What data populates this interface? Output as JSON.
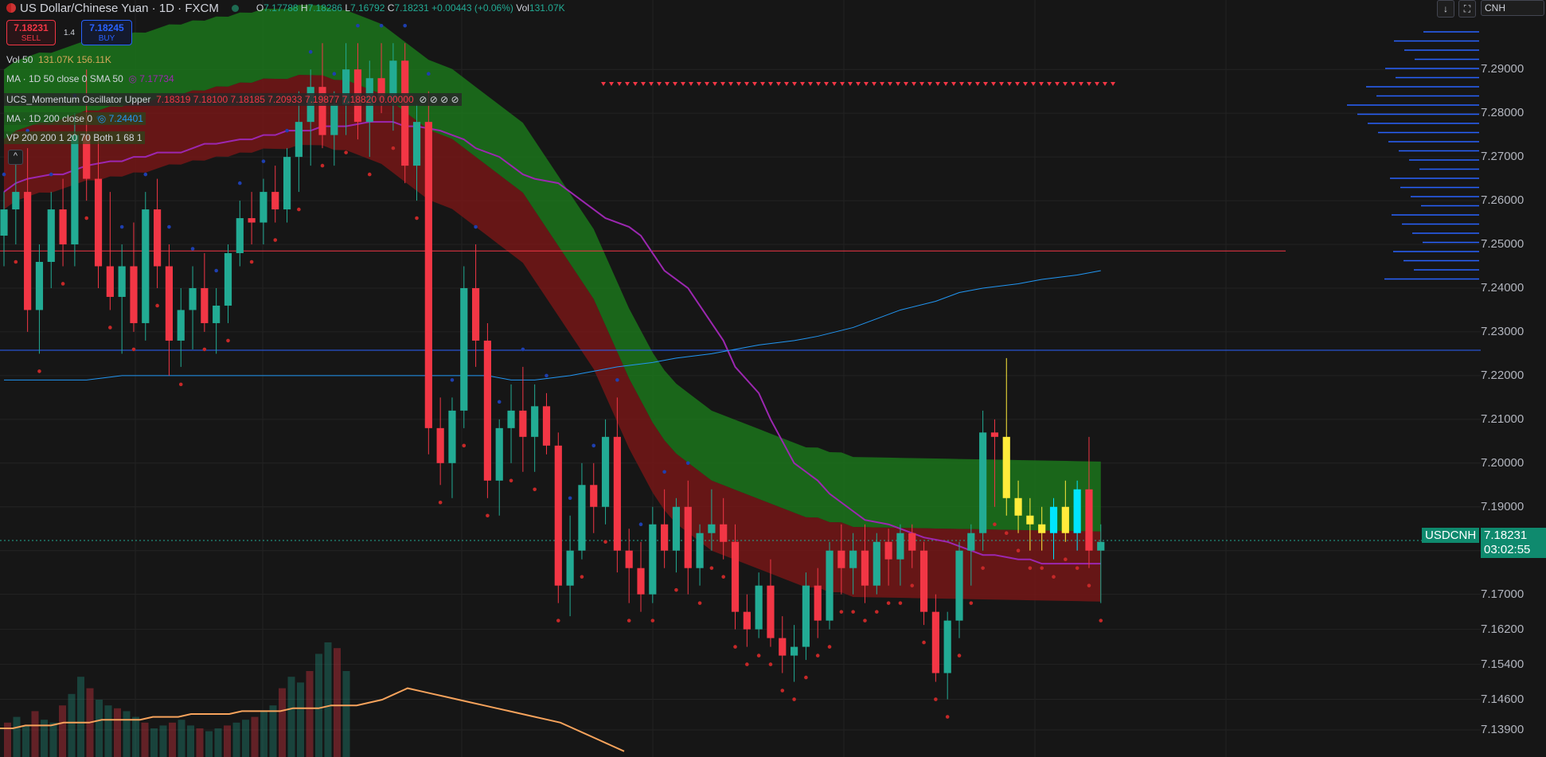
{
  "header": {
    "title": "US Dollar/Chinese Yuan · 1D · FXCM",
    "o_label": "O",
    "o_value": "7.17788",
    "h_label": "H",
    "h_value": "7.18286",
    "l_label": "L",
    "l_value": "7.16792",
    "c_label": "C",
    "c_value": "7.18231",
    "change": "+0.00443 (+0.06%)",
    "vol_label": "Vol",
    "vol_value": "131.07K"
  },
  "trade": {
    "sell_price": "7.18231",
    "sell_label": "SELL",
    "spread": "1.4",
    "buy_price": "7.18245",
    "buy_label": "BUY"
  },
  "legends": [
    {
      "name": "Vol 50",
      "values": "131.07K  156.11K"
    },
    {
      "name": "MA · 1D 50 close 0 SMA 50",
      "values": "7.17734"
    },
    {
      "name": "UCS_Momentum Oscillator Upper",
      "values": "7.18319  7.18100  7.18185  7.20933  7.19877  7.18820  0.00000"
    },
    {
      "name": "MA · 1D 200 close 0",
      "values": "7.24401"
    },
    {
      "name": "VP 200 200 1 20 70 Both 1 68 1",
      "values": ""
    }
  ],
  "toolbar": {
    "currency": "CNH",
    "collapse": "^"
  },
  "price_axis": [
    "7.29000",
    "7.28000",
    "7.27000",
    "7.26000",
    "7.25000",
    "7.24000",
    "7.23000",
    "7.22000",
    "7.21000",
    "7.20000",
    "7.19000",
    "7.18000",
    "7.17000",
    "7.16200",
    "7.15400",
    "7.14600",
    "7.13900"
  ],
  "last_price": {
    "symbol": "USDCNH",
    "price": "7.18231",
    "countdown": "03:02:55"
  },
  "colors": {
    "up": "#22ab94",
    "down": "#f23645",
    "ma50": "#9c27b0",
    "ma200": "#2196f3",
    "cloud_green": "#1b7a1b",
    "cloud_red": "#7a1717",
    "highlight_up": "#00e5ff",
    "highlight_down": "#ffeb3b"
  },
  "chart_data": {
    "type": "candlestick",
    "symbol": "USDCNH",
    "timeframe": "1D",
    "ylim": [
      7.137,
      7.2975
    ],
    "ohlc": [
      [
        7.252,
        7.262,
        7.245,
        7.258
      ],
      [
        7.258,
        7.27,
        7.25,
        7.262
      ],
      [
        7.262,
        7.272,
        7.23,
        7.235
      ],
      [
        7.235,
        7.25,
        7.225,
        7.246
      ],
      [
        7.246,
        7.262,
        7.24,
        7.258
      ],
      [
        7.258,
        7.265,
        7.245,
        7.25
      ],
      [
        7.25,
        7.28,
        7.245,
        7.275
      ],
      [
        7.275,
        7.29,
        7.26,
        7.265
      ],
      [
        7.265,
        7.275,
        7.24,
        7.245
      ],
      [
        7.245,
        7.262,
        7.235,
        7.238
      ],
      [
        7.238,
        7.25,
        7.225,
        7.245
      ],
      [
        7.245,
        7.255,
        7.23,
        7.232
      ],
      [
        7.232,
        7.262,
        7.228,
        7.258
      ],
      [
        7.258,
        7.265,
        7.24,
        7.245
      ],
      [
        7.245,
        7.25,
        7.22,
        7.228
      ],
      [
        7.228,
        7.24,
        7.222,
        7.235
      ],
      [
        7.235,
        7.245,
        7.226,
        7.24
      ],
      [
        7.24,
        7.248,
        7.23,
        7.232
      ],
      [
        7.232,
        7.24,
        7.225,
        7.236
      ],
      [
        7.236,
        7.25,
        7.232,
        7.248
      ],
      [
        7.248,
        7.26,
        7.245,
        7.256
      ],
      [
        7.256,
        7.262,
        7.25,
        7.255
      ],
      [
        7.255,
        7.265,
        7.25,
        7.262
      ],
      [
        7.262,
        7.268,
        7.255,
        7.258
      ],
      [
        7.258,
        7.272,
        7.255,
        7.27
      ],
      [
        7.27,
        7.285,
        7.262,
        7.278
      ],
      [
        7.278,
        7.29,
        7.268,
        7.286
      ],
      [
        7.286,
        7.296,
        7.272,
        7.275
      ],
      [
        7.275,
        7.285,
        7.268,
        7.282
      ],
      [
        7.282,
        7.296,
        7.275,
        7.29
      ],
      [
        7.29,
        7.296,
        7.274,
        7.278
      ],
      [
        7.278,
        7.292,
        7.27,
        7.288
      ],
      [
        7.288,
        7.296,
        7.28,
        7.283
      ],
      [
        7.283,
        7.296,
        7.276,
        7.292
      ],
      [
        7.292,
        7.296,
        7.264,
        7.268
      ],
      [
        7.268,
        7.282,
        7.26,
        7.278
      ],
      [
        7.278,
        7.285,
        7.202,
        7.208
      ],
      [
        7.208,
        7.215,
        7.195,
        7.2
      ],
      [
        7.2,
        7.215,
        7.192,
        7.212
      ],
      [
        7.212,
        7.245,
        7.208,
        7.24
      ],
      [
        7.24,
        7.25,
        7.222,
        7.228
      ],
      [
        7.228,
        7.232,
        7.192,
        7.196
      ],
      [
        7.196,
        7.21,
        7.188,
        7.208
      ],
      [
        7.208,
        7.218,
        7.2,
        7.212
      ],
      [
        7.212,
        7.222,
        7.198,
        7.206
      ],
      [
        7.206,
        7.218,
        7.198,
        7.213
      ],
      [
        7.213,
        7.216,
        7.202,
        7.204
      ],
      [
        7.204,
        7.207,
        7.168,
        7.172
      ],
      [
        7.172,
        7.188,
        7.165,
        7.18
      ],
      [
        7.18,
        7.2,
        7.178,
        7.195
      ],
      [
        7.195,
        7.2,
        7.184,
        7.19
      ],
      [
        7.19,
        7.21,
        7.186,
        7.206
      ],
      [
        7.206,
        7.215,
        7.175,
        7.18
      ],
      [
        7.18,
        7.185,
        7.168,
        7.176
      ],
      [
        7.176,
        7.182,
        7.166,
        7.17
      ],
      [
        7.17,
        7.19,
        7.168,
        7.186
      ],
      [
        7.186,
        7.194,
        7.176,
        7.18
      ],
      [
        7.18,
        7.192,
        7.175,
        7.19
      ],
      [
        7.19,
        7.196,
        7.17,
        7.176
      ],
      [
        7.176,
        7.186,
        7.172,
        7.184
      ],
      [
        7.184,
        7.194,
        7.18,
        7.186
      ],
      [
        7.186,
        7.192,
        7.178,
        7.182
      ],
      [
        7.182,
        7.186,
        7.162,
        7.166
      ],
      [
        7.166,
        7.17,
        7.158,
        7.162
      ],
      [
        7.162,
        7.175,
        7.16,
        7.172
      ],
      [
        7.172,
        7.178,
        7.158,
        7.16
      ],
      [
        7.16,
        7.165,
        7.152,
        7.156
      ],
      [
        7.156,
        7.163,
        7.15,
        7.158
      ],
      [
        7.158,
        7.175,
        7.155,
        7.172
      ],
      [
        7.172,
        7.176,
        7.16,
        7.164
      ],
      [
        7.164,
        7.182,
        7.162,
        7.18
      ],
      [
        7.18,
        7.186,
        7.17,
        7.176
      ],
      [
        7.176,
        7.184,
        7.17,
        7.18
      ],
      [
        7.18,
        7.186,
        7.168,
        7.172
      ],
      [
        7.172,
        7.184,
        7.17,
        7.182
      ],
      [
        7.182,
        7.185,
        7.172,
        7.178
      ],
      [
        7.178,
        7.186,
        7.172,
        7.184
      ],
      [
        7.184,
        7.186,
        7.176,
        7.18
      ],
      [
        7.18,
        7.182,
        7.163,
        7.166
      ],
      [
        7.166,
        7.17,
        7.15,
        7.152
      ],
      [
        7.152,
        7.166,
        7.146,
        7.164
      ],
      [
        7.164,
        7.182,
        7.16,
        7.18
      ],
      [
        7.18,
        7.186,
        7.172,
        7.184
      ],
      [
        7.184,
        7.212,
        7.18,
        7.207
      ],
      [
        7.207,
        7.21,
        7.19,
        7.206
      ],
      [
        7.206,
        7.224,
        7.188,
        7.192
      ],
      [
        7.192,
        7.196,
        7.184,
        7.188
      ],
      [
        7.188,
        7.192,
        7.18,
        7.186
      ],
      [
        7.186,
        7.19,
        7.18,
        7.184
      ],
      [
        7.184,
        7.192,
        7.178,
        7.19
      ],
      [
        7.19,
        7.196,
        7.182,
        7.184
      ],
      [
        7.184,
        7.196,
        7.18,
        7.194
      ],
      [
        7.194,
        7.206,
        7.176,
        7.18
      ],
      [
        7.18,
        7.186,
        7.168,
        7.182
      ]
    ],
    "ma50": [
      7.262,
      7.264,
      7.265,
      7.266,
      7.266,
      7.267,
      7.268,
      7.269,
      7.269,
      7.27,
      7.27,
      7.271,
      7.271,
      7.272,
      7.273,
      7.273,
      7.274,
      7.274,
      7.275,
      7.275,
      7.276,
      7.276,
      7.277,
      7.277,
      7.277,
      7.278,
      7.278,
      7.278,
      7.277,
      7.277,
      7.276,
      7.275,
      7.274,
      7.272,
      7.27,
      7.268,
      7.266,
      7.265,
      7.264,
      7.262,
      7.26,
      7.258,
      7.256,
      7.254,
      7.252,
      7.248,
      7.244,
      7.24,
      7.236,
      7.232,
      7.228,
      7.222,
      7.216,
      7.21,
      7.205,
      7.2,
      7.196,
      7.193,
      7.191,
      7.189,
      7.187,
      7.186,
      7.185,
      7.184,
      7.183,
      7.182,
      7.181,
      7.18,
      7.179,
      7.179,
      7.178,
      7.178,
      7.177,
      7.177,
      7.177,
      7.177,
      7.177
    ],
    "ma200": [
      7.219,
      7.219,
      7.219,
      7.219,
      7.22,
      7.22,
      7.22,
      7.22,
      7.22,
      7.22,
      7.22,
      7.22,
      7.22,
      7.22,
      7.22,
      7.22,
      7.22,
      7.22,
      7.219,
      7.219,
      7.22,
      7.221,
      7.222,
      7.223,
      7.224,
      7.225,
      7.226,
      7.227,
      7.228,
      7.229,
      7.231,
      7.233,
      7.235,
      7.237,
      7.239,
      7.24,
      7.241,
      7.242,
      7.243,
      7.244
    ],
    "horizontal_lines": [
      {
        "price": 7.2485,
        "color": "#f23645"
      },
      {
        "price": 7.2258,
        "color": "#2962ff"
      },
      {
        "price": 7.18231,
        "color": "#22ab94",
        "style": "dotted"
      }
    ],
    "volume": [
      12,
      14,
      11,
      16,
      13,
      12,
      18,
      22,
      28,
      24,
      20,
      18,
      17,
      16,
      14,
      12,
      10,
      11,
      12,
      13,
      11,
      10,
      9,
      10,
      11,
      12,
      13,
      14,
      16,
      18,
      24,
      28,
      26,
      30,
      36,
      40,
      38,
      30
    ],
    "volume_ma": [
      10,
      10,
      11,
      11,
      11,
      12,
      12,
      12,
      13,
      13,
      13,
      13,
      14,
      14,
      14,
      15,
      15,
      15,
      15,
      16,
      16,
      16,
      16,
      17,
      17,
      17,
      18,
      18,
      18,
      19,
      20,
      22,
      24,
      23,
      22,
      21,
      20,
      19,
      18,
      17,
      16,
      15,
      14,
      13,
      12,
      10,
      8,
      6,
      4,
      2
    ]
  }
}
